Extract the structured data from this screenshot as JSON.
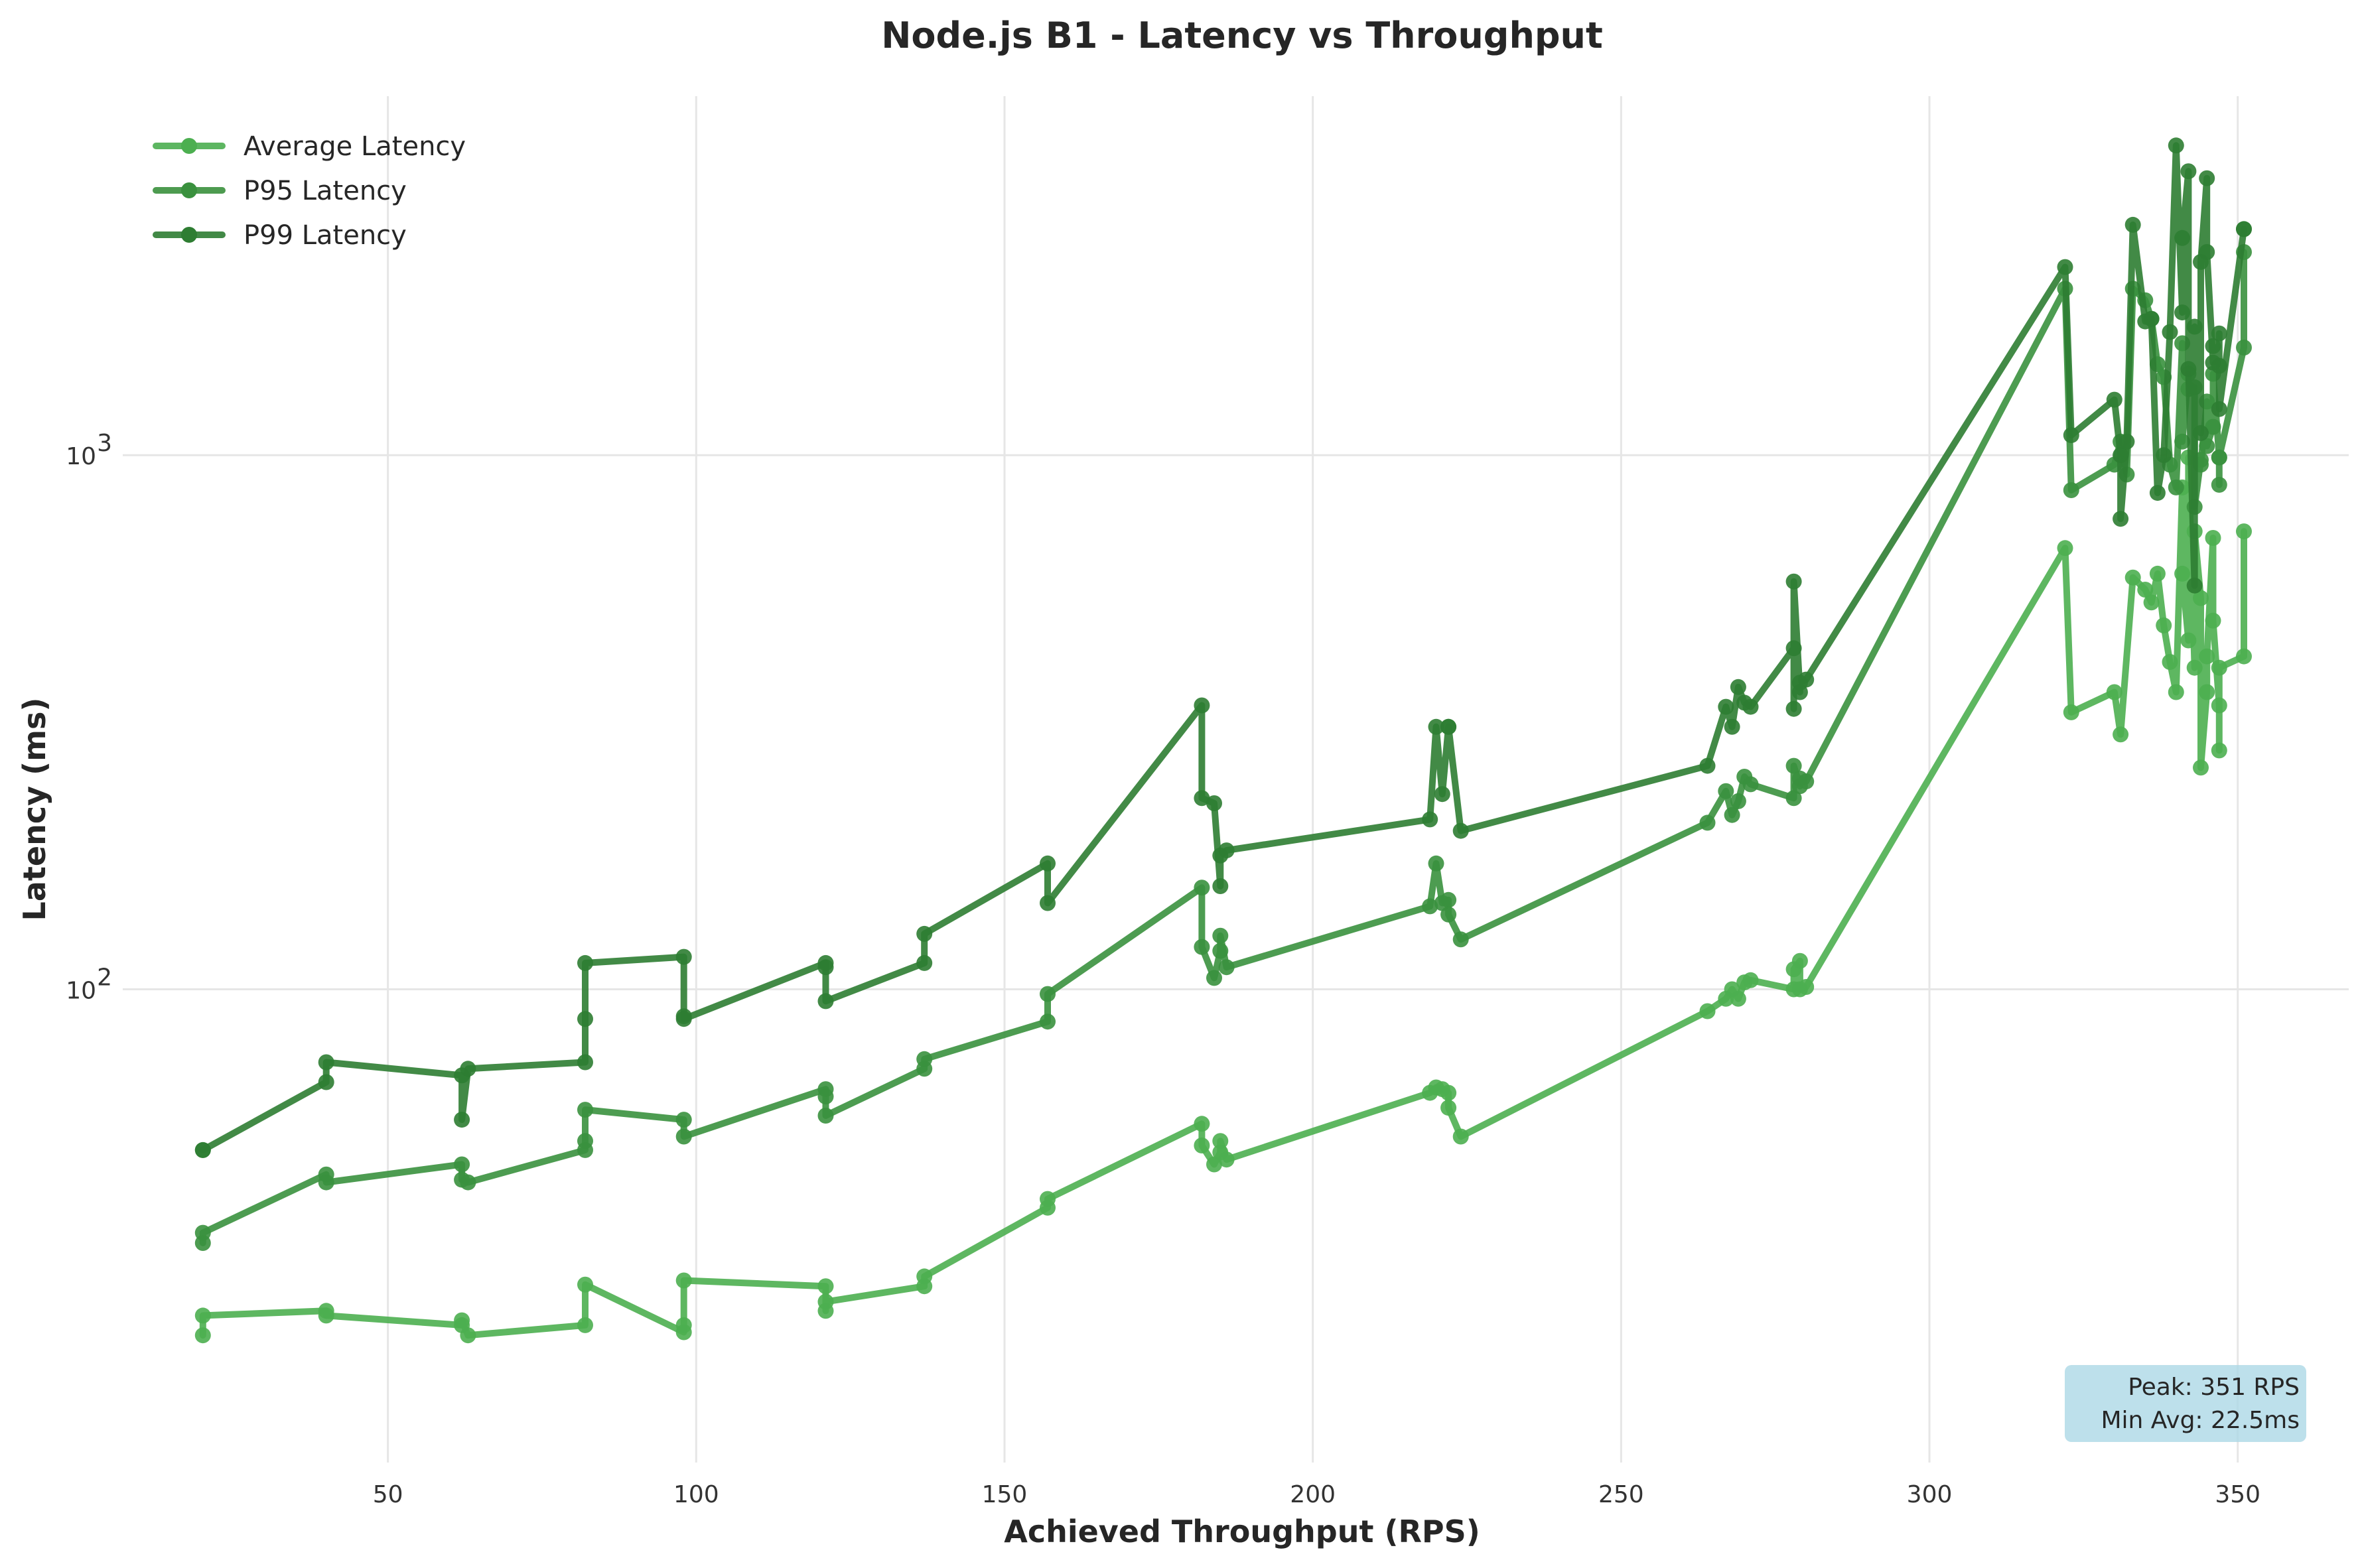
{
  "chart_data": {
    "type": "line",
    "title": "Node.js B1 - Latency vs Throughput",
    "xlabel": "Achieved Throughput (RPS)",
    "ylabel": "Latency (ms)",
    "xlim": [
      7,
      368
    ],
    "ylim": [
      13,
      4700
    ],
    "yscale": "log",
    "xticks": [
      50,
      100,
      150,
      200,
      250,
      300,
      350
    ],
    "xtick_labels": [
      "50",
      "100",
      "150",
      "200",
      "250",
      "300",
      "350"
    ],
    "yticks": [
      100,
      1000
    ],
    "ytick_bases": [
      "10",
      "10"
    ],
    "ytick_exps": [
      "2",
      "3"
    ],
    "grid": true,
    "legend_position": "top-left",
    "annotation": {
      "lines": [
        "Peak: 351 RPS",
        "Min Avg: 22.5ms"
      ],
      "position": "bottom-right"
    },
    "colors": {
      "avg": "#4caf50",
      "p95": "#3a913e",
      "p99": "#2e7d32",
      "annot_bg": "#add8e6"
    },
    "series": [
      {
        "name": "Average Latency",
        "x": [
          20,
          20,
          40,
          40,
          62,
          62,
          63,
          82,
          82,
          98,
          98,
          98,
          121,
          121,
          121,
          137,
          137,
          157,
          157,
          182,
          182,
          184,
          185,
          185,
          186,
          219,
          220,
          221,
          222,
          222,
          224,
          264,
          267,
          268,
          269,
          270,
          271,
          278,
          278,
          279,
          279,
          280,
          322,
          323,
          330,
          331,
          333,
          335,
          336,
          337,
          338,
          339,
          340,
          341,
          341,
          342,
          342,
          343,
          343,
          344,
          344,
          345,
          345,
          346,
          346,
          347,
          347,
          347,
          351,
          351
        ],
        "y": [
          22.5,
          24.5,
          25,
          24.5,
          23.5,
          24,
          22.5,
          23.5,
          28,
          22.8,
          23.5,
          28.5,
          27.8,
          25,
          26,
          27.8,
          29,
          39,
          40.5,
          56,
          51,
          47,
          49.5,
          52,
          48,
          64,
          65.5,
          65,
          64,
          60,
          53,
          91,
          96,
          100,
          96,
          103,
          104,
          100,
          109,
          113,
          100,
          101,
          670,
          330,
          360,
          300,
          590,
          560,
          530,
          600,
          480,
          410,
          360,
          870,
          600,
          450,
          990,
          400,
          720,
          540,
          260,
          360,
          420,
          700,
          490,
          340,
          280,
          400,
          420,
          720
        ],
        "markers": true
      },
      {
        "name": "P95 Latency",
        "x": [
          20,
          20,
          40,
          40,
          62,
          62,
          63,
          82,
          82,
          82,
          98,
          98,
          121,
          121,
          121,
          137,
          137,
          157,
          157,
          182,
          182,
          184,
          185,
          185,
          186,
          219,
          220,
          221,
          222,
          222,
          224,
          264,
          267,
          268,
          269,
          270,
          271,
          278,
          278,
          279,
          279,
          280,
          322,
          323,
          330,
          331,
          332,
          333,
          335,
          336,
          337,
          338,
          339,
          340,
          341,
          341,
          342,
          342,
          343,
          343,
          344,
          344,
          345,
          345,
          346,
          346,
          347,
          347,
          347,
          351,
          351
        ],
        "y": [
          33.5,
          35,
          45,
          43.5,
          47,
          44,
          43.5,
          50,
          52,
          59.5,
          57,
          53,
          65,
          63,
          58,
          71,
          74,
          87,
          98,
          155,
          120,
          105,
          118,
          126,
          110,
          143,
          172,
          145,
          147,
          138,
          124,
          205,
          235,
          212,
          225,
          250,
          242,
          228,
          262,
          240,
          248,
          245,
          2050,
          860,
          960,
          1060,
          920,
          2050,
          1950,
          1800,
          1480,
          1400,
          960,
          870,
          1620,
          1060,
          1420,
          1330,
          1340,
          800,
          980,
          960,
          1260,
          1040,
          1130,
          1420,
          990,
          880,
          990,
          1590,
          2400
        ],
        "markers": true
      },
      {
        "name": "P99 Latency",
        "x": [
          20,
          20,
          40,
          40,
          62,
          62,
          63,
          82,
          82,
          82,
          98,
          98,
          98,
          121,
          121,
          121,
          137,
          137,
          157,
          157,
          182,
          182,
          184,
          185,
          185,
          186,
          219,
          220,
          221,
          222,
          222,
          224,
          264,
          267,
          268,
          269,
          270,
          271,
          278,
          278,
          278,
          279,
          279,
          280,
          322,
          323,
          330,
          331,
          331,
          332,
          333,
          335,
          336,
          337,
          338,
          339,
          340,
          341,
          341,
          342,
          342,
          343,
          343,
          344,
          344,
          345,
          345,
          346,
          346,
          347,
          347,
          347,
          351,
          351
        ],
        "y": [
          50,
          50,
          67,
          73,
          69,
          57,
          71,
          73,
          88,
          112,
          115,
          89,
          88,
          112,
          110,
          95,
          112,
          127,
          172,
          145,
          340,
          228,
          223,
          156,
          178,
          182,
          208,
          310,
          232,
          310,
          310,
          198,
          262,
          338,
          310,
          368,
          344,
          338,
          435,
          335,
          580,
          360,
          375,
          380,
          2250,
          1090,
          1270,
          1000,
          760,
          1060,
          2700,
          1780,
          1800,
          850,
          1000,
          1700,
          3800,
          1850,
          2550,
          3400,
          1450,
          570,
          1740,
          1100,
          2300,
          3300,
          2400,
          1490,
          1600,
          1470,
          1690,
          1220,
          2650,
          2650
        ],
        "markers": true
      }
    ]
  }
}
